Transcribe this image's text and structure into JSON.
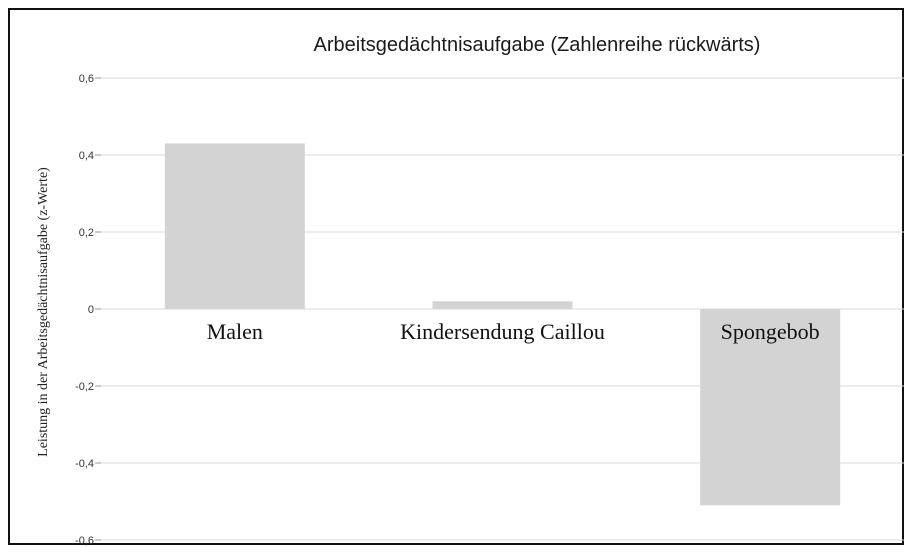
{
  "chart_data": {
    "type": "bar",
    "title": "Arbeitsgedächtnisaufgabe (Zahlenreihe rückwärts)",
    "xlabel": "",
    "ylabel": "Leistung in der Arbeitsgedächtnisaufgabe (z-Werte)",
    "categories": [
      "Malen",
      "Kindersendung Caillou",
      "Spongebob"
    ],
    "values": [
      0.43,
      0.02,
      -0.51
    ],
    "ylim": [
      -0.6,
      0.6
    ],
    "yticks": [
      "0,6",
      "0,4",
      "0,2",
      "0",
      "-0,2",
      "-0,4",
      "-0,6"
    ],
    "grid": true,
    "bar_color": "#d3d3d3"
  }
}
